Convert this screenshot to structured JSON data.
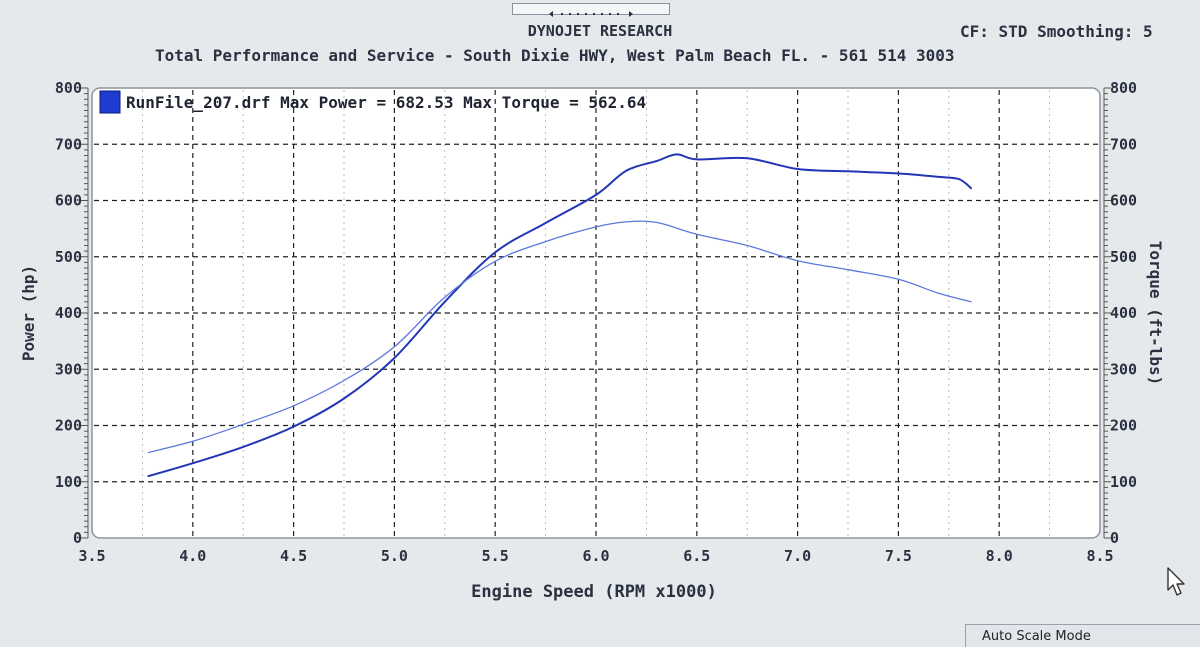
{
  "header": {
    "title": "DYNOJET RESEARCH",
    "subtitle": "Total Performance and Service -  South Dixie HWY, West Palm Beach FL. -  561 514 3003",
    "correction": "CF: STD  Smoothing: 5"
  },
  "status": {
    "mode": "Auto Scale Mode"
  },
  "icons": {
    "scroll_thumb": "scroll-thumb-icon",
    "cursor": "mouse-cursor-icon"
  },
  "colors": {
    "power_line": "#2236b8",
    "torque_line": "#5b78dc",
    "legend_swatch": "#1e3cd0",
    "plot_bg": "#ffffff",
    "frame_bg": "#e6e9ec"
  },
  "chart_data": {
    "type": "line",
    "title": "DYNOJET RESEARCH",
    "xlabel": "Engine Speed (RPM x1000)",
    "ylabel": "Power (hp)",
    "y2label": "Torque (ft-lbs)",
    "xlim": [
      3.5,
      8.5
    ],
    "ylim": [
      0,
      800
    ],
    "y2lim": [
      0,
      800
    ],
    "x_ticks": [
      "3.5",
      "4.0",
      "4.5",
      "5.0",
      "5.5",
      "6.0",
      "6.5",
      "7.0",
      "7.5",
      "8.0",
      "8.5"
    ],
    "y_ticks": [
      "0",
      "100",
      "200",
      "300",
      "400",
      "500",
      "600",
      "700",
      "800"
    ],
    "grid": true,
    "legend": "top-left",
    "legend_text": "RunFile_207.drf Max Power = 682.53 Max Torque = 562.64",
    "series": [
      {
        "axis": "left",
        "x": [
          3.78,
          4.0,
          4.25,
          4.5,
          4.75,
          5.0,
          5.25,
          5.5,
          5.75,
          6.0,
          6.15,
          6.3,
          6.4,
          6.5,
          6.75,
          7.0,
          7.25,
          7.5,
          7.7,
          7.8,
          7.86
        ],
        "y": [
          110,
          133,
          162,
          198,
          248,
          320,
          420,
          508,
          560,
          610,
          653,
          670,
          682,
          673,
          675,
          656,
          652,
          648,
          642,
          638,
          622
        ]
      },
      {
        "axis": "right",
        "x": [
          3.78,
          4.0,
          4.25,
          4.5,
          4.75,
          5.0,
          5.25,
          5.5,
          5.75,
          6.0,
          6.15,
          6.3,
          6.5,
          6.75,
          7.0,
          7.25,
          7.5,
          7.7,
          7.86
        ],
        "y": [
          152,
          172,
          202,
          235,
          280,
          340,
          428,
          492,
          527,
          553,
          562,
          561,
          540,
          520,
          493,
          477,
          460,
          435,
          420
        ]
      }
    ]
  }
}
